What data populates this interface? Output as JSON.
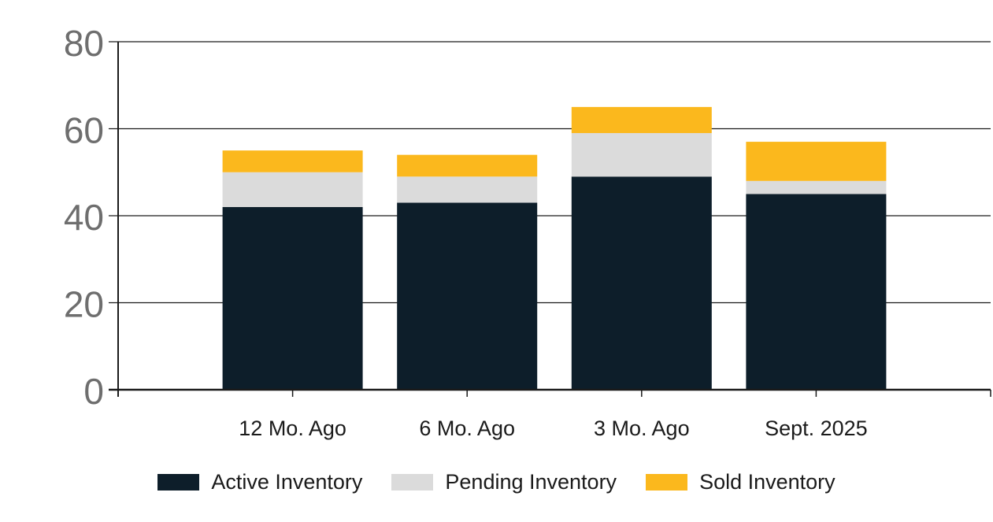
{
  "chart_data": {
    "type": "bar",
    "stacked": true,
    "title": "",
    "xlabel": "",
    "ylabel": "",
    "categories": [
      "12 Mo. Ago",
      "6 Mo. Ago",
      "3 Mo. Ago",
      "Sept. 2025"
    ],
    "series": [
      {
        "name": "Active Inventory",
        "color": "#0d1e2a",
        "values": [
          42,
          43,
          49,
          45
        ]
      },
      {
        "name": "Pending Inventory",
        "color": "#dbdbdb",
        "values": [
          8,
          6,
          10,
          3
        ]
      },
      {
        "name": "Sold Inventory",
        "color": "#fbb81d",
        "values": [
          5,
          5,
          6,
          9
        ]
      }
    ],
    "stack_totals": [
      55,
      54,
      65,
      57
    ],
    "y_ticks": [
      0,
      20,
      40,
      60,
      80
    ],
    "ylim": [
      0,
      80
    ],
    "grid": true,
    "legend_position": "bottom"
  },
  "colors": {
    "background": "#ffffff",
    "grid_line": "#1a1a1a",
    "axis_line": "#1a1a1a",
    "y_tick_label": "#6e6e6e",
    "x_tick_label": "#1a1a1a",
    "legend_text": "#1a1a1a"
  }
}
